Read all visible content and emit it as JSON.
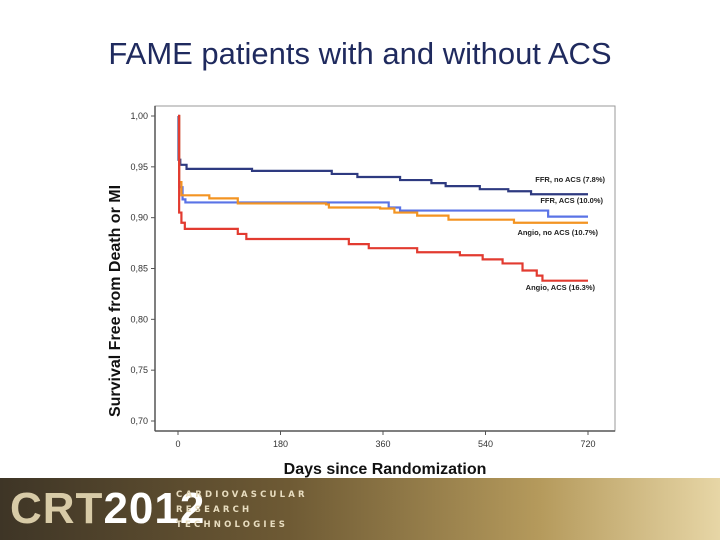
{
  "title": "FAME patients with and without ACS",
  "logo": {
    "crt": "CRT",
    "year": "2012",
    "line1": "CARDIOVASCULAR",
    "line2": "RESEARCH",
    "line3": "TECHNOLOGIES"
  },
  "chart_data": {
    "type": "line",
    "subtype": "step (Kaplan-Meier survival)",
    "title": "",
    "xlabel": "Days since Randomization",
    "ylabel": "Survival Free from Death or MI",
    "xlim": [
      0,
      720
    ],
    "ylim": [
      0.7,
      1.0
    ],
    "xticks": [
      0,
      180,
      360,
      540,
      720
    ],
    "yticks": [
      "0,70",
      "0,75",
      "0,80",
      "0,85",
      "0,90",
      "0,95",
      "1,00"
    ],
    "grid": false,
    "legend": "inline labels at line ends",
    "series": [
      {
        "name": "FFR, no ACS (7.8%)",
        "color": "#2e3a80",
        "points": [
          [
            0,
            1.0
          ],
          [
            1,
            0.957
          ],
          [
            4,
            0.952
          ],
          [
            15,
            0.948
          ],
          [
            130,
            0.946
          ],
          [
            270,
            0.943
          ],
          [
            315,
            0.94
          ],
          [
            390,
            0.937
          ],
          [
            445,
            0.934
          ],
          [
            470,
            0.931
          ],
          [
            530,
            0.928
          ],
          [
            580,
            0.926
          ],
          [
            620,
            0.923
          ],
          [
            720,
            0.923
          ]
        ]
      },
      {
        "name": "FFR, ACS (10.0%)",
        "color": "#5a73e6",
        "points": [
          [
            0,
            1.0
          ],
          [
            2,
            0.93
          ],
          [
            8,
            0.918
          ],
          [
            13,
            0.915
          ],
          [
            370,
            0.91
          ],
          [
            390,
            0.907
          ],
          [
            650,
            0.901
          ],
          [
            720,
            0.901
          ]
        ]
      },
      {
        "name": "Angio, no ACS (10.7%)",
        "color": "#f39422",
        "points": [
          [
            0,
            1.0
          ],
          [
            2,
            0.935
          ],
          [
            6,
            0.922
          ],
          [
            55,
            0.919
          ],
          [
            105,
            0.914
          ],
          [
            260,
            0.913
          ],
          [
            265,
            0.91
          ],
          [
            355,
            0.909
          ],
          [
            380,
            0.905
          ],
          [
            420,
            0.902
          ],
          [
            475,
            0.898
          ],
          [
            590,
            0.895
          ],
          [
            720,
            0.895
          ]
        ]
      },
      {
        "name": "Angio, ACS (16.3%)",
        "color": "#e23b30",
        "points": [
          [
            0,
            1.0
          ],
          [
            2,
            0.905
          ],
          [
            6,
            0.895
          ],
          [
            12,
            0.889
          ],
          [
            105,
            0.884
          ],
          [
            120,
            0.879
          ],
          [
            300,
            0.874
          ],
          [
            335,
            0.87
          ],
          [
            420,
            0.866
          ],
          [
            495,
            0.863
          ],
          [
            535,
            0.859
          ],
          [
            570,
            0.855
          ],
          [
            605,
            0.848
          ],
          [
            630,
            0.843
          ],
          [
            640,
            0.838
          ],
          [
            720,
            0.838
          ]
        ]
      }
    ]
  }
}
